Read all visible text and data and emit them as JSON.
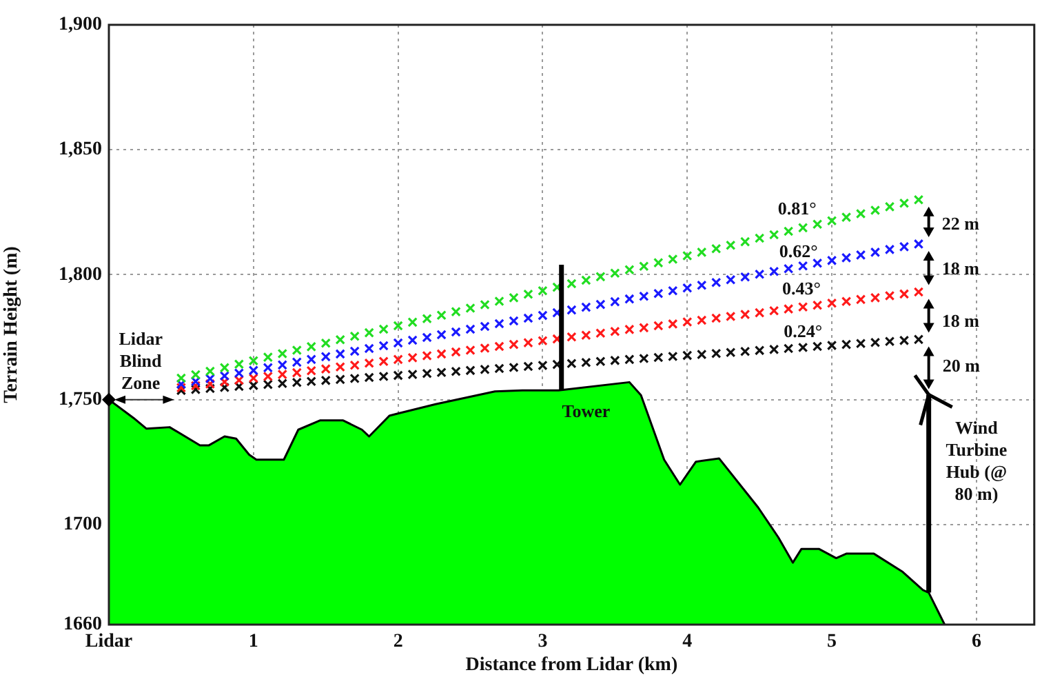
{
  "chart_data": {
    "type": "scatter",
    "xlabel": "Distance from Lidar (km)",
    "ylabel": "Terrain Height (m)",
    "xlim": [
      0,
      6.4
    ],
    "xticks": [
      {
        "value": 0,
        "label": "Lidar"
      },
      1,
      2,
      3,
      4,
      5,
      6
    ],
    "ylim": [
      1660,
      1900
    ],
    "yticks": [
      1660,
      1700,
      {
        "value": 1750,
        "label": "1,750"
      },
      {
        "value": 1800,
        "label": "1,800"
      },
      {
        "value": 1850,
        "label": "1,850"
      },
      {
        "value": 1900,
        "label": "1,900"
      }
    ],
    "grid": true,
    "legend": false,
    "series": [
      {
        "type": "area",
        "color": "#00ff00",
        "x": [
          0,
          0.17,
          0.26,
          0.42,
          0.63,
          0.69,
          0.8,
          0.88,
          0.97,
          1.02,
          1.21,
          1.31,
          1.46,
          1.62,
          1.75,
          1.8,
          1.94,
          2.0,
          2.26,
          2.67,
          2.86,
          3.11,
          3.6,
          3.68,
          3.84,
          3.95,
          4.06,
          4.22,
          4.49,
          4.63,
          4.73,
          4.79,
          4.91,
          5.03,
          5.1,
          5.29,
          5.49,
          5.63,
          5.67,
          5.78
        ],
        "values": [
          1750,
          1742.7,
          1738.4,
          1739,
          1731.7,
          1731.7,
          1735.3,
          1734.4,
          1728,
          1726,
          1726,
          1738,
          1741.7,
          1741.7,
          1738,
          1735.3,
          1743.6,
          1744.5,
          1748.2,
          1753.3,
          1753.7,
          1753.7,
          1757,
          1751.8,
          1726,
          1716,
          1725.2,
          1726.5,
          1706.9,
          1694.9,
          1684.8,
          1690.3,
          1690.3,
          1686.6,
          1688.4,
          1688.4,
          1681.1,
          1673.8,
          1672.8,
          1660
        ]
      },
      {
        "marker": "cross",
        "color": "#22dd22",
        "x": [
          0.5,
          0.6,
          0.7,
          0.8,
          0.9,
          1.0,
          1.1,
          1.2,
          1.3,
          1.4,
          1.5,
          1.6,
          1.7,
          1.8,
          1.9,
          2.0,
          2.1,
          2.2,
          2.3,
          2.4,
          2.5,
          2.6,
          2.7,
          2.8,
          2.9,
          3.0,
          3.1,
          3.2,
          3.3,
          3.4,
          3.5,
          3.6,
          3.7,
          3.8,
          3.9,
          4.0,
          4.1,
          4.2,
          4.3,
          4.4,
          4.5,
          4.6,
          4.7,
          4.8,
          4.9,
          5.0,
          5.1,
          5.2,
          5.3,
          5.4,
          5.5,
          5.6
        ],
        "values": [
          1758.6,
          1760.0,
          1761.4,
          1762.8,
          1764.2,
          1765.6,
          1767.0,
          1768.4,
          1769.8,
          1771.2,
          1772.6,
          1774.0,
          1775.4,
          1776.8,
          1778.2,
          1779.6,
          1781.0,
          1782.4,
          1783.8,
          1785.2,
          1786.6,
          1788.0,
          1789.4,
          1790.8,
          1792.2,
          1793.6,
          1795.0,
          1796.4,
          1797.8,
          1799.2,
          1800.6,
          1802.0,
          1803.4,
          1804.8,
          1806.2,
          1807.6,
          1809.0,
          1810.4,
          1811.8,
          1813.2,
          1814.6,
          1816.0,
          1817.4,
          1818.8,
          1820.2,
          1821.6,
          1823.0,
          1824.4,
          1825.8,
          1827.2,
          1828.6,
          1830.0
        ]
      },
      {
        "marker": "cross",
        "color": "#1a1aff",
        "x": [
          0.5,
          0.6,
          0.7,
          0.8,
          0.9,
          1.0,
          1.1,
          1.2,
          1.3,
          1.4,
          1.5,
          1.6,
          1.7,
          1.8,
          1.9,
          2.0,
          2.1,
          2.2,
          2.3,
          2.4,
          2.5,
          2.6,
          2.7,
          2.8,
          2.9,
          3.0,
          3.1,
          3.2,
          3.3,
          3.4,
          3.5,
          3.6,
          3.7,
          3.8,
          3.9,
          4.0,
          4.1,
          4.2,
          4.3,
          4.4,
          4.5,
          4.6,
          4.7,
          4.8,
          4.9,
          5.0,
          5.1,
          5.2,
          5.3,
          5.4,
          5.5,
          5.6
        ],
        "values": [
          1756.2,
          1757.3,
          1758.4,
          1759.5,
          1760.6,
          1761.7,
          1762.8,
          1763.9,
          1765.0,
          1766.1,
          1767.2,
          1768.3,
          1769.4,
          1770.5,
          1771.6,
          1772.7,
          1773.8,
          1774.9,
          1776.0,
          1777.1,
          1778.2,
          1779.3,
          1780.4,
          1781.5,
          1782.6,
          1783.7,
          1784.8,
          1785.9,
          1787.0,
          1788.1,
          1789.2,
          1790.3,
          1791.4,
          1792.5,
          1793.6,
          1794.7,
          1795.8,
          1796.9,
          1798.0,
          1799.1,
          1800.2,
          1801.3,
          1802.4,
          1803.5,
          1804.6,
          1805.7,
          1806.8,
          1807.9,
          1809.0,
          1810.1,
          1811.2,
          1812.3
        ]
      },
      {
        "marker": "cross",
        "color": "#ff1a1a",
        "x": [
          0.5,
          0.6,
          0.7,
          0.8,
          0.9,
          1.0,
          1.1,
          1.2,
          1.3,
          1.4,
          1.5,
          1.6,
          1.7,
          1.8,
          1.9,
          2.0,
          2.1,
          2.2,
          2.3,
          2.4,
          2.5,
          2.6,
          2.7,
          2.8,
          2.9,
          3.0,
          3.1,
          3.2,
          3.3,
          3.4,
          3.5,
          3.6,
          3.7,
          3.8,
          3.9,
          4.0,
          4.1,
          4.2,
          4.3,
          4.4,
          4.5,
          4.6,
          4.7,
          4.8,
          4.9,
          5.0,
          5.1,
          5.2,
          5.3,
          5.4,
          5.5,
          5.6
        ],
        "values": [
          1754.8,
          1755.6,
          1756.3,
          1757.1,
          1757.8,
          1758.6,
          1759.3,
          1760.1,
          1760.8,
          1761.6,
          1762.3,
          1763.1,
          1763.8,
          1764.6,
          1765.3,
          1766.1,
          1766.8,
          1767.6,
          1768.3,
          1769.1,
          1769.8,
          1770.6,
          1771.3,
          1772.1,
          1772.8,
          1773.6,
          1774.3,
          1775.1,
          1775.8,
          1776.6,
          1777.3,
          1778.1,
          1778.8,
          1779.6,
          1780.3,
          1781.1,
          1781.8,
          1782.6,
          1783.3,
          1784.1,
          1784.8,
          1785.6,
          1786.3,
          1787.1,
          1787.8,
          1788.6,
          1789.3,
          1790.1,
          1790.8,
          1791.6,
          1792.3,
          1793.1
        ]
      },
      {
        "marker": "cross",
        "color": "#111111",
        "x": [
          0.5,
          0.6,
          0.7,
          0.8,
          0.9,
          1.0,
          1.1,
          1.2,
          1.3,
          1.4,
          1.5,
          1.6,
          1.7,
          1.8,
          1.9,
          2.0,
          2.1,
          2.2,
          2.3,
          2.4,
          2.5,
          2.6,
          2.7,
          2.8,
          2.9,
          3.0,
          3.1,
          3.2,
          3.3,
          3.4,
          3.5,
          3.6,
          3.7,
          3.8,
          3.9,
          4.0,
          4.1,
          4.2,
          4.3,
          4.4,
          4.5,
          4.6,
          4.7,
          4.8,
          4.9,
          5.0,
          5.1,
          5.2,
          5.3,
          5.4,
          5.5,
          5.6
        ],
        "values": [
          1753.7,
          1754.1,
          1754.5,
          1754.9,
          1755.3,
          1755.7,
          1756.1,
          1756.5,
          1756.9,
          1757.3,
          1757.7,
          1758.1,
          1758.5,
          1758.9,
          1759.3,
          1759.7,
          1760.1,
          1760.5,
          1760.9,
          1761.3,
          1761.7,
          1762.1,
          1762.5,
          1762.9,
          1763.3,
          1763.7,
          1764.1,
          1764.5,
          1764.9,
          1765.3,
          1765.7,
          1766.1,
          1766.5,
          1766.9,
          1767.3,
          1767.7,
          1768.1,
          1768.5,
          1768.9,
          1769.3,
          1769.7,
          1770.1,
          1770.5,
          1770.9,
          1771.3,
          1771.7,
          1772.1,
          1772.5,
          1772.9,
          1773.3,
          1773.7,
          1774.1
        ]
      }
    ],
    "annotations": [
      "Lidar Blind Zone",
      "Tower",
      "Wind Turbine Hub (@ 80 m)",
      "0.81°",
      "0.62°",
      "0.43°",
      "0.24°",
      "22 m",
      "18 m",
      "18 m",
      {
        "text": "20 m",
        "x": 5.6,
        "y": 1774.1
      }
    ]
  }
}
